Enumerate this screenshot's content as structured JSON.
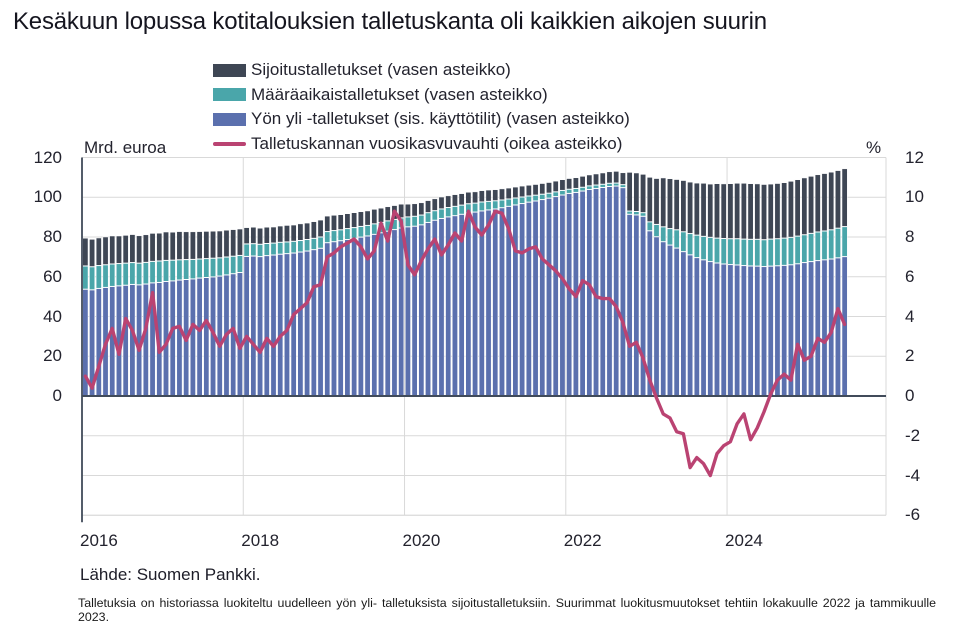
{
  "title": "Kesäkuun lopussa kotitalouksien talletuskanta oli kaikkien aikojen suurin",
  "legend": {
    "items": [
      {
        "label": "Sijoitustalletukset (vasen asteikko)",
        "swatch": "bar",
        "color": "#3e4654"
      },
      {
        "label": "Määräaikaistalletukset (vasen asteikko)",
        "swatch": "bar",
        "color": "#4aa6aa"
      },
      {
        "label": "Yön yli -talletukset (sis. käyttötilit) (vasen asteikko)",
        "swatch": "bar",
        "color": "#5b70ae"
      },
      {
        "label": "Talletuskannan vuosikasvuvauhti (oikea asteikko)",
        "swatch": "line",
        "color": "#ba4372"
      }
    ]
  },
  "left_axis": {
    "unit": "Mrd. euroa",
    "ticks": [
      120,
      100,
      80,
      60,
      40,
      20,
      0
    ]
  },
  "right_axis": {
    "unit": "%",
    "ticks": [
      12,
      10,
      8,
      6,
      4,
      2,
      0,
      -2,
      -4,
      -6
    ]
  },
  "x_axis": {
    "tick_labels": [
      "2016",
      "2018",
      "2020",
      "2022",
      "2024"
    ]
  },
  "source": "Lähde: Suomen Pankki.",
  "footnote": "Talletuksia on historiassa luokiteltu uudelleen yön yli- talletuksista sijoitustalletuksiin. Suurimmat luokitusmuutokset tehtiin lokakuulle 2022 ja tammikuulle 2023.",
  "chart_data": {
    "type": "bar",
    "subtype": "stacked-monthly-bars-with-line-overlay",
    "title": "Kesäkuun lopussa kotitalouksien talletuskanta oli kaikkien aikojen suurin",
    "left_ylabel": "Mrd. euroa",
    "right_ylabel": "%",
    "left_ylim": [
      0,
      120
    ],
    "right_ylim": [
      -6,
      12
    ],
    "grid": true,
    "legend_position": "top",
    "months": [
      "2016-01",
      "2016-02",
      "2016-03",
      "2016-04",
      "2016-05",
      "2016-06",
      "2016-07",
      "2016-08",
      "2016-09",
      "2016-10",
      "2016-11",
      "2016-12",
      "2017-01",
      "2017-02",
      "2017-03",
      "2017-04",
      "2017-05",
      "2017-06",
      "2017-07",
      "2017-08",
      "2017-09",
      "2017-10",
      "2017-11",
      "2017-12",
      "2018-01",
      "2018-02",
      "2018-03",
      "2018-04",
      "2018-05",
      "2018-06",
      "2018-07",
      "2018-08",
      "2018-09",
      "2018-10",
      "2018-11",
      "2018-12",
      "2019-01",
      "2019-02",
      "2019-03",
      "2019-04",
      "2019-05",
      "2019-06",
      "2019-07",
      "2019-08",
      "2019-09",
      "2019-10",
      "2019-11",
      "2019-12",
      "2020-01",
      "2020-02",
      "2020-03",
      "2020-04",
      "2020-05",
      "2020-06",
      "2020-07",
      "2020-08",
      "2020-09",
      "2020-10",
      "2020-11",
      "2020-12",
      "2021-01",
      "2021-02",
      "2021-03",
      "2021-04",
      "2021-05",
      "2021-06",
      "2021-07",
      "2021-08",
      "2021-09",
      "2021-10",
      "2021-11",
      "2021-12",
      "2022-01",
      "2022-02",
      "2022-03",
      "2022-04",
      "2022-05",
      "2022-06",
      "2022-07",
      "2022-08",
      "2022-09",
      "2022-10",
      "2022-11",
      "2022-12",
      "2023-01",
      "2023-02",
      "2023-03",
      "2023-04",
      "2023-05",
      "2023-06",
      "2023-07",
      "2023-08",
      "2023-09",
      "2023-10",
      "2023-11",
      "2023-12",
      "2024-01",
      "2024-02",
      "2024-03",
      "2024-04",
      "2024-05",
      "2024-06",
      "2024-07",
      "2024-08",
      "2024-09",
      "2024-10",
      "2024-11",
      "2024-12",
      "2025-01",
      "2025-02",
      "2025-03",
      "2025-04",
      "2025-05",
      "2025-06"
    ],
    "series": [
      {
        "name": "Yön yli -talletukset (sis. käyttötilit)",
        "axis": "left",
        "unit": "Mrd. euroa",
        "color": "#5b70ae",
        "values": [
          53.6,
          53.3,
          54.0,
          54.5,
          55.0,
          55.3,
          55.6,
          56.0,
          55.8,
          56.2,
          56.8,
          57.0,
          57.5,
          57.8,
          58.2,
          58.5,
          58.8,
          59.2,
          59.5,
          59.8,
          60.2,
          60.8,
          61.4,
          62.0,
          70.1,
          70.3,
          70.0,
          70.5,
          70.8,
          71.2,
          71.5,
          71.8,
          72.3,
          72.8,
          73.5,
          74.2,
          77.0,
          77.5,
          78.0,
          78.6,
          79.2,
          79.8,
          80.4,
          81.2,
          82.0,
          82.8,
          83.6,
          84.4,
          85.0,
          85.3,
          86.0,
          87.2,
          88.3,
          89.2,
          90.0,
          90.6,
          91.3,
          92.0,
          92.4,
          93.0,
          93.5,
          94.0,
          94.6,
          95.3,
          96.0,
          96.7,
          97.4,
          98.0,
          98.7,
          99.4,
          100.2,
          101.0,
          101.8,
          102.3,
          103.0,
          103.8,
          104.3,
          104.8,
          105.3,
          105.5,
          104.7,
          91.3,
          91.0,
          90.3,
          83.0,
          80.0,
          77.5,
          75.8,
          74.3,
          72.5,
          70.9,
          69.5,
          68.4,
          67.5,
          66.8,
          66.3,
          66.0,
          65.8,
          65.5,
          65.3,
          65.2,
          65.0,
          65.2,
          65.4,
          65.6,
          65.9,
          66.4,
          67.0,
          67.5,
          68.0,
          68.4,
          68.8,
          69.4,
          70.0
        ]
      },
      {
        "name": "Määräaikaistalletukset",
        "axis": "left",
        "unit": "Mrd. euroa",
        "color": "#4aa6aa",
        "values": [
          11.7,
          11.6,
          11.5,
          11.4,
          11.3,
          11.2,
          11.1,
          11.0,
          10.9,
          10.9,
          10.8,
          10.8,
          10.6,
          10.4,
          10.2,
          10.0,
          9.8,
          9.6,
          9.5,
          9.4,
          9.2,
          9.0,
          8.8,
          8.6,
          6.3,
          6.2,
          6.2,
          6.1,
          6.0,
          6.0,
          5.9,
          5.9,
          5.8,
          5.8,
          5.7,
          5.7,
          5.6,
          5.6,
          5.5,
          5.5,
          5.4,
          5.4,
          5.3,
          5.3,
          5.2,
          5.2,
          5.1,
          5.1,
          5.0,
          5.0,
          4.9,
          4.9,
          4.8,
          4.8,
          4.7,
          4.7,
          4.6,
          4.6,
          4.5,
          4.5,
          4.3,
          4.1,
          3.9,
          3.7,
          3.5,
          3.3,
          3.1,
          2.9,
          2.7,
          2.5,
          2.4,
          2.3,
          2.1,
          2.0,
          1.9,
          1.8,
          1.7,
          1.6,
          1.6,
          1.5,
          1.5,
          1.6,
          1.7,
          1.8,
          4.5,
          6.2,
          7.5,
          8.3,
          9.2,
          10.0,
          10.7,
          11.3,
          11.8,
          12.2,
          12.5,
          12.8,
          13.0,
          13.2,
          13.3,
          13.4,
          13.5,
          13.5,
          13.6,
          13.6,
          13.7,
          13.8,
          13.9,
          14.0,
          14.2,
          14.4,
          14.5,
          14.7,
          14.9,
          15.1
        ]
      },
      {
        "name": "Sijoitustalletukset",
        "axis": "left",
        "unit": "Mrd. euroa",
        "color": "#3e4654",
        "values": [
          14.1,
          13.9,
          14.0,
          14.1,
          14.2,
          14.0,
          14.1,
          14.2,
          13.9,
          14.0,
          14.2,
          14.1,
          14.4,
          14.2,
          14.3,
          14.1,
          14.0,
          13.9,
          13.8,
          13.7,
          13.6,
          13.6,
          13.5,
          13.4,
          8.3,
          8.4,
          8.2,
          8.3,
          8.2,
          8.3,
          8.4,
          8.3,
          8.5,
          8.4,
          8.5,
          8.6,
          7.9,
          7.8,
          7.7,
          7.6,
          7.6,
          7.5,
          7.4,
          7.4,
          7.3,
          7.2,
          7.1,
          7.0,
          6.5,
          6.4,
          6.3,
          6.2,
          6.1,
          6.1,
          6.0,
          6.0,
          5.9,
          5.9,
          5.8,
          5.8,
          5.8,
          5.7,
          5.7,
          5.6,
          5.6,
          5.6,
          5.5,
          5.5,
          5.5,
          5.5,
          5.5,
          5.5,
          5.5,
          5.5,
          5.6,
          5.6,
          5.7,
          5.8,
          5.9,
          6.0,
          6.1,
          19.6,
          19.5,
          19.4,
          22.5,
          23.2,
          24.7,
          25.2,
          25.4,
          25.9,
          26.0,
          26.3,
          26.8,
          26.9,
          27.5,
          27.6,
          27.8,
          28.0,
          28.2,
          28.1,
          28.0,
          27.9,
          27.8,
          27.9,
          28.0,
          28.3,
          28.5,
          28.7,
          28.8,
          28.9,
          29.0,
          29.1,
          29.1,
          29.2
        ]
      }
    ],
    "line_series": {
      "name": "Talletuskannan vuosikasvuvauhti",
      "axis": "right",
      "unit": "%",
      "color": "#ba4372",
      "values": [
        1.0,
        0.4,
        1.5,
        2.6,
        3.4,
        2.1,
        3.9,
        3.3,
        2.3,
        3.4,
        5.2,
        2.2,
        2.6,
        3.4,
        3.5,
        2.8,
        3.6,
        3.3,
        3.8,
        3.2,
        2.5,
        3.1,
        3.4,
        2.4,
        3.0,
        2.6,
        2.2,
        2.9,
        2.5,
        3.0,
        3.3,
        4.1,
        4.4,
        4.7,
        5.5,
        5.6,
        7.0,
        7.2,
        7.5,
        7.7,
        7.9,
        7.5,
        6.9,
        7.3,
        8.7,
        7.8,
        9.3,
        8.8,
        6.6,
        6.1,
        6.8,
        7.4,
        7.9,
        7.1,
        7.6,
        8.2,
        7.8,
        9.3,
        8.5,
        8.1,
        8.6,
        9.3,
        9.2,
        8.4,
        7.3,
        7.2,
        7.4,
        7.5,
        6.9,
        6.6,
        6.3,
        5.9,
        5.4,
        5.0,
        5.8,
        5.6,
        5.0,
        4.9,
        4.9,
        4.5,
        3.7,
        2.5,
        2.7,
        1.9,
        0.8,
        -0.1,
        -0.9,
        -1.1,
        -1.8,
        -1.9,
        -3.6,
        -3.1,
        -3.4,
        -4.0,
        -2.9,
        -2.5,
        -2.3,
        -1.4,
        -0.9,
        -2.2,
        -1.6,
        -0.8,
        0.1,
        0.8,
        1.1,
        0.8,
        2.6,
        1.8,
        2.0,
        2.9,
        2.7,
        3.2,
        4.4,
        3.6
      ]
    },
    "x_tick_years": [
      {
        "label": "2016",
        "month_index": 0
      },
      {
        "label": "2018",
        "month_index": 24
      },
      {
        "label": "2020",
        "month_index": 48
      },
      {
        "label": "2022",
        "month_index": 72
      },
      {
        "label": "2024",
        "month_index": 96
      }
    ],
    "colors": {
      "gridline": "#d9d9d9",
      "axis": "#414b5a",
      "background": "#ffffff"
    }
  }
}
